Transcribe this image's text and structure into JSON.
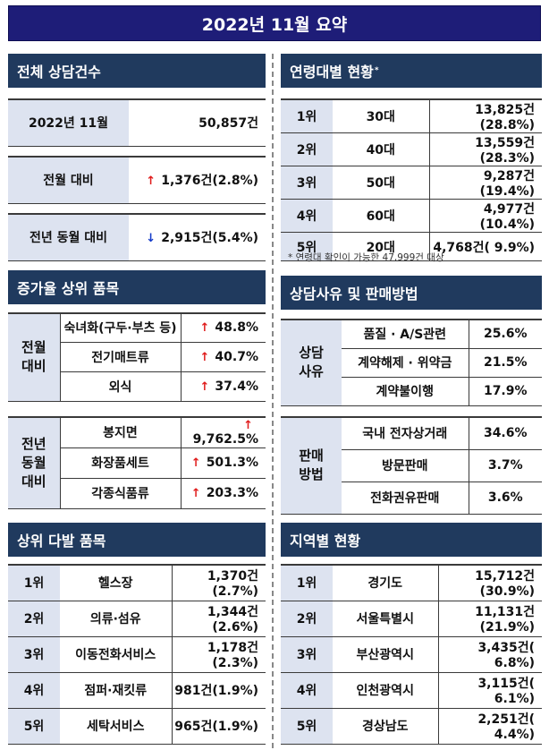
{
  "title": "2022년 11월 요약",
  "sections": {
    "total": {
      "heading": "전체 상담건수",
      "rows": [
        {
          "label": "2022년 11월",
          "value": "50,857건"
        },
        {
          "label": "전월 대비",
          "arrow": "↑",
          "value": "1,376건(2.8%)"
        },
        {
          "label": "전년 동월 대비",
          "arrow": "↓",
          "value": "2,915건(5.4%)"
        }
      ]
    },
    "increase": {
      "heading": "증가율 상위 품목",
      "groups": [
        {
          "label": "전월\n대비",
          "items": [
            {
              "name": "숙녀화(구두·부츠 등)",
              "arrow": "↑",
              "value": "48.8%"
            },
            {
              "name": "전기매트류",
              "arrow": "↑",
              "value": "40.7%"
            },
            {
              "name": "외식",
              "arrow": "↑",
              "value": "37.4%"
            }
          ]
        },
        {
          "label": "전년\n동월\n대비",
          "items": [
            {
              "name": "봉지면",
              "arrow": "↑",
              "value": "9,762.5%"
            },
            {
              "name": "화장품세트",
              "arrow": "↑",
              "value": "501.3%"
            },
            {
              "name": "각종식품류",
              "arrow": "↑",
              "value": "203.3%"
            }
          ]
        }
      ]
    },
    "top_items": {
      "heading": "상위 다발 품목",
      "rows": [
        {
          "rank": "1위",
          "name": "헬스장",
          "value": "1,370건(2.7%)"
        },
        {
          "rank": "2위",
          "name": "의류·섬유",
          "value": "1,344건(2.6%)"
        },
        {
          "rank": "3위",
          "name": "이동전화서비스",
          "value": "1,178건(2.3%)"
        },
        {
          "rank": "4위",
          "name": "점퍼·재킷류",
          "value": "981건(1.9%)"
        },
        {
          "rank": "5위",
          "name": "세탁서비스",
          "value": "965건(1.9%)"
        }
      ]
    },
    "age": {
      "heading": "연령대별 현황",
      "heading_mark": "*",
      "rows": [
        {
          "rank": "1위",
          "name": "30대",
          "value": "13,825건(28.8%)"
        },
        {
          "rank": "2위",
          "name": "40대",
          "value": "13,559건(28.3%)"
        },
        {
          "rank": "3위",
          "name": "50대",
          "value": "9,287건(19.4%)"
        },
        {
          "rank": "4위",
          "name": "60대",
          "value": "4,977건(10.4%)"
        },
        {
          "rank": "5위",
          "name": "20대",
          "value": "4,768건( 9.9%)"
        }
      ],
      "note": "* 연령대 확인이 가능한 47,999건 대상"
    },
    "reason": {
      "heading": "상담사유 및 판매방법",
      "groups": [
        {
          "label": "상담\n사유",
          "items": [
            {
              "name": "품질 · A/S관련",
              "value": "25.6%"
            },
            {
              "name": "계약해제 · 위약금",
              "value": "21.5%"
            },
            {
              "name": "계약불이행",
              "value": "17.9%"
            }
          ]
        },
        {
          "label": "판매\n방법",
          "items": [
            {
              "name": "국내 전자상거래",
              "value": "34.6%"
            },
            {
              "name": "방문판매",
              "value": "3.7%"
            },
            {
              "name": "전화권유판매",
              "value": "3.6%"
            }
          ]
        }
      ]
    },
    "region": {
      "heading": "지역별 현황",
      "rows": [
        {
          "rank": "1위",
          "name": "경기도",
          "value": "15,712건(30.9%)"
        },
        {
          "rank": "2위",
          "name": "서울특별시",
          "value": "11,131건(21.9%)"
        },
        {
          "rank": "3위",
          "name": "부산광역시",
          "value": "3,435건( 6.8%)"
        },
        {
          "rank": "4위",
          "name": "인천광역시",
          "value": "3,115건( 6.1%)"
        },
        {
          "rank": "5위",
          "name": "경상남도",
          "value": "2,251건( 4.4%)"
        }
      ]
    }
  },
  "colors": {
    "title_bg": "#1e1d78",
    "section_bg": "#203a5e",
    "shade": "#dde3f0",
    "up": "#e01b1b",
    "down": "#1239c9"
  }
}
